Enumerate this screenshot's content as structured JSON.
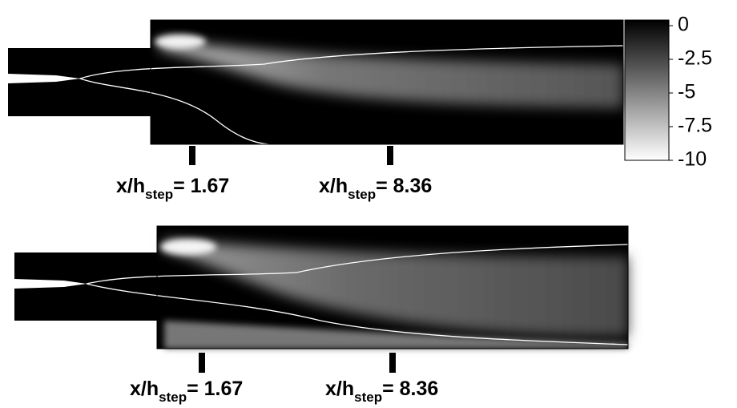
{
  "colorbar": {
    "ticks": [
      0,
      -2.5,
      -5,
      -7.5,
      -10
    ]
  },
  "panels": [
    {
      "markers": [
        {
          "text": "x/h",
          "sub": "step",
          "rest": "= 1.67"
        },
        {
          "text": "x/h",
          "sub": "step",
          "rest": "= 8.36"
        }
      ]
    },
    {
      "markers": [
        {
          "text": "x/h",
          "sub": "step",
          "rest": "= 1.67"
        },
        {
          "text": "x/h",
          "sub": "step",
          "rest": "= 8.36"
        }
      ]
    }
  ]
}
